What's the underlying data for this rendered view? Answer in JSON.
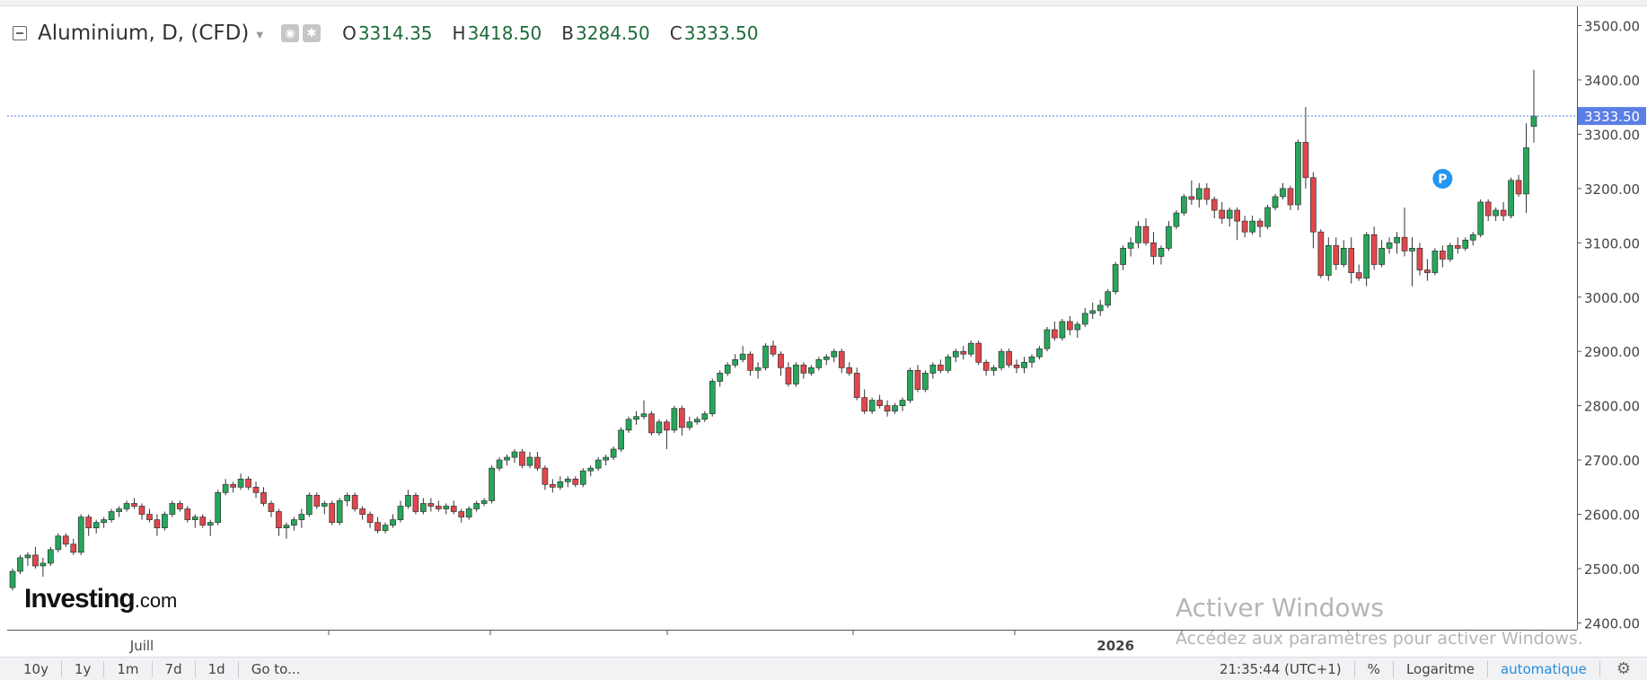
{
  "header": {
    "symbol": "Aluminium, D, (CFD)",
    "open_label": "O",
    "open_value": "3314.35",
    "high_label": "H",
    "high_value": "3418.50",
    "low_label": "B",
    "low_value": "3284.50",
    "close_label": "C",
    "close_value": "3333.50",
    "ohlc_color": "#1e6b3a"
  },
  "price_tag": "3333.50",
  "logo": {
    "bold": "Investing",
    "suffix": ".com"
  },
  "watermark": {
    "line1": "Activer Windows",
    "line2": "Accédez aux paramètres pour activer Windows."
  },
  "bottom_bar": {
    "ranges": [
      "10y",
      "1y",
      "1m",
      "7d",
      "1d"
    ],
    "goto": "Go to...",
    "time": "21:35:44 (UTC+1)",
    "percent": "%",
    "log": "Logaritme",
    "auto": "automatique"
  },
  "colors": {
    "up": "#26a65b",
    "down": "#e0474c",
    "price_line": "#5b7ee5",
    "marker": "#2196f3"
  },
  "chart_data": {
    "type": "candlestick",
    "y_ticks": [
      2400,
      2500,
      2600,
      2700,
      2800,
      2900,
      3000,
      3100,
      3200,
      3300,
      3400,
      3500
    ],
    "y_tick_labels": [
      "2400.00",
      "2500.00",
      "2600.00",
      "2700.00",
      "2800.00",
      "2900.00",
      "3000.00",
      "3100.00",
      "3200.00",
      "3300.00",
      "3400.00",
      "3500.00"
    ],
    "ylim": [
      2380,
      3530
    ],
    "x_labels": [
      {
        "label": "Juill",
        "index": 17
      },
      {
        "label": "2026",
        "index": 145
      }
    ],
    "current_price": 3333.5,
    "candles": [
      [
        2465,
        2500,
        2460,
        2495
      ],
      [
        2495,
        2525,
        2490,
        2520
      ],
      [
        2520,
        2530,
        2505,
        2525
      ],
      [
        2525,
        2540,
        2500,
        2505
      ],
      [
        2505,
        2520,
        2485,
        2510
      ],
      [
        2510,
        2540,
        2505,
        2535
      ],
      [
        2535,
        2565,
        2530,
        2560
      ],
      [
        2560,
        2565,
        2540,
        2545
      ],
      [
        2545,
        2555,
        2525,
        2530
      ],
      [
        2530,
        2600,
        2525,
        2595
      ],
      [
        2595,
        2600,
        2560,
        2575
      ],
      [
        2575,
        2590,
        2565,
        2585
      ],
      [
        2585,
        2595,
        2575,
        2590
      ],
      [
        2590,
        2610,
        2585,
        2605
      ],
      [
        2605,
        2615,
        2595,
        2610
      ],
      [
        2610,
        2625,
        2605,
        2620
      ],
      [
        2620,
        2630,
        2610,
        2615
      ],
      [
        2615,
        2620,
        2590,
        2600
      ],
      [
        2600,
        2610,
        2585,
        2590
      ],
      [
        2590,
        2600,
        2560,
        2575
      ],
      [
        2575,
        2605,
        2570,
        2600
      ],
      [
        2600,
        2625,
        2595,
        2620
      ],
      [
        2620,
        2625,
        2605,
        2610
      ],
      [
        2610,
        2615,
        2585,
        2590
      ],
      [
        2590,
        2600,
        2575,
        2595
      ],
      [
        2595,
        2600,
        2575,
        2580
      ],
      [
        2580,
        2590,
        2560,
        2585
      ],
      [
        2585,
        2645,
        2580,
        2640
      ],
      [
        2640,
        2665,
        2635,
        2655
      ],
      [
        2655,
        2660,
        2640,
        2650
      ],
      [
        2650,
        2675,
        2645,
        2665
      ],
      [
        2665,
        2670,
        2645,
        2650
      ],
      [
        2650,
        2660,
        2630,
        2640
      ],
      [
        2640,
        2650,
        2615,
        2620
      ],
      [
        2620,
        2625,
        2595,
        2605
      ],
      [
        2605,
        2610,
        2560,
        2575
      ],
      [
        2575,
        2585,
        2555,
        2580
      ],
      [
        2580,
        2595,
        2570,
        2590
      ],
      [
        2590,
        2610,
        2575,
        2600
      ],
      [
        2600,
        2640,
        2595,
        2635
      ],
      [
        2635,
        2640,
        2610,
        2615
      ],
      [
        2615,
        2625,
        2600,
        2620
      ],
      [
        2620,
        2625,
        2580,
        2585
      ],
      [
        2585,
        2630,
        2580,
        2625
      ],
      [
        2625,
        2640,
        2615,
        2635
      ],
      [
        2635,
        2640,
        2605,
        2610
      ],
      [
        2610,
        2615,
        2590,
        2600
      ],
      [
        2600,
        2605,
        2575,
        2585
      ],
      [
        2585,
        2595,
        2565,
        2570
      ],
      [
        2570,
        2585,
        2565,
        2580
      ],
      [
        2580,
        2600,
        2575,
        2590
      ],
      [
        2590,
        2625,
        2585,
        2615
      ],
      [
        2615,
        2645,
        2610,
        2635
      ],
      [
        2635,
        2640,
        2600,
        2605
      ],
      [
        2605,
        2630,
        2600,
        2620
      ],
      [
        2620,
        2630,
        2605,
        2615
      ],
      [
        2615,
        2625,
        2605,
        2610
      ],
      [
        2610,
        2620,
        2600,
        2615
      ],
      [
        2615,
        2625,
        2600,
        2605
      ],
      [
        2605,
        2610,
        2585,
        2595
      ],
      [
        2595,
        2615,
        2590,
        2610
      ],
      [
        2610,
        2625,
        2605,
        2620
      ],
      [
        2620,
        2630,
        2615,
        2625
      ],
      [
        2625,
        2690,
        2620,
        2685
      ],
      [
        2685,
        2705,
        2680,
        2700
      ],
      [
        2700,
        2710,
        2690,
        2705
      ],
      [
        2705,
        2720,
        2695,
        2715
      ],
      [
        2715,
        2720,
        2685,
        2690
      ],
      [
        2690,
        2715,
        2685,
        2705
      ],
      [
        2705,
        2715,
        2680,
        2685
      ],
      [
        2685,
        2690,
        2645,
        2655
      ],
      [
        2655,
        2665,
        2640,
        2650
      ],
      [
        2650,
        2670,
        2645,
        2660
      ],
      [
        2660,
        2670,
        2650,
        2665
      ],
      [
        2665,
        2670,
        2650,
        2655
      ],
      [
        2655,
        2685,
        2650,
        2680
      ],
      [
        2680,
        2690,
        2670,
        2685
      ],
      [
        2685,
        2705,
        2680,
        2700
      ],
      [
        2700,
        2710,
        2690,
        2705
      ],
      [
        2705,
        2725,
        2700,
        2720
      ],
      [
        2720,
        2760,
        2715,
        2755
      ],
      [
        2755,
        2780,
        2750,
        2775
      ],
      [
        2775,
        2790,
        2765,
        2780
      ],
      [
        2780,
        2810,
        2775,
        2785
      ],
      [
        2785,
        2790,
        2745,
        2750
      ],
      [
        2750,
        2775,
        2745,
        2770
      ],
      [
        2770,
        2775,
        2720,
        2755
      ],
      [
        2755,
        2800,
        2750,
        2795
      ],
      [
        2795,
        2800,
        2745,
        2760
      ],
      [
        2760,
        2780,
        2755,
        2770
      ],
      [
        2770,
        2780,
        2765,
        2775
      ],
      [
        2775,
        2790,
        2770,
        2785
      ],
      [
        2785,
        2850,
        2780,
        2845
      ],
      [
        2845,
        2865,
        2835,
        2860
      ],
      [
        2860,
        2880,
        2855,
        2875
      ],
      [
        2875,
        2895,
        2870,
        2885
      ],
      [
        2885,
        2910,
        2880,
        2895
      ],
      [
        2895,
        2900,
        2855,
        2865
      ],
      [
        2865,
        2880,
        2850,
        2870
      ],
      [
        2870,
        2915,
        2865,
        2910
      ],
      [
        2910,
        2920,
        2890,
        2895
      ],
      [
        2895,
        2900,
        2855,
        2870
      ],
      [
        2870,
        2880,
        2835,
        2840
      ],
      [
        2840,
        2880,
        2835,
        2875
      ],
      [
        2875,
        2880,
        2850,
        2860
      ],
      [
        2860,
        2875,
        2855,
        2870
      ],
      [
        2870,
        2890,
        2865,
        2885
      ],
      [
        2885,
        2895,
        2875,
        2890
      ],
      [
        2890,
        2905,
        2880,
        2900
      ],
      [
        2900,
        2905,
        2860,
        2870
      ],
      [
        2870,
        2880,
        2855,
        2860
      ],
      [
        2860,
        2870,
        2810,
        2815
      ],
      [
        2815,
        2830,
        2785,
        2790
      ],
      [
        2790,
        2815,
        2785,
        2810
      ],
      [
        2810,
        2820,
        2795,
        2800
      ],
      [
        2800,
        2810,
        2780,
        2790
      ],
      [
        2790,
        2805,
        2785,
        2800
      ],
      [
        2800,
        2815,
        2790,
        2810
      ],
      [
        2810,
        2870,
        2805,
        2865
      ],
      [
        2865,
        2875,
        2825,
        2830
      ],
      [
        2830,
        2865,
        2825,
        2860
      ],
      [
        2860,
        2880,
        2850,
        2875
      ],
      [
        2875,
        2885,
        2860,
        2865
      ],
      [
        2865,
        2895,
        2860,
        2890
      ],
      [
        2890,
        2905,
        2880,
        2900
      ],
      [
        2900,
        2910,
        2885,
        2895
      ],
      [
        2895,
        2920,
        2890,
        2915
      ],
      [
        2915,
        2920,
        2875,
        2880
      ],
      [
        2880,
        2885,
        2855,
        2865
      ],
      [
        2865,
        2875,
        2855,
        2870
      ],
      [
        2870,
        2905,
        2865,
        2900
      ],
      [
        2900,
        2905,
        2870,
        2875
      ],
      [
        2875,
        2885,
        2860,
        2870
      ],
      [
        2870,
        2890,
        2860,
        2880
      ],
      [
        2880,
        2895,
        2870,
        2890
      ],
      [
        2890,
        2910,
        2885,
        2905
      ],
      [
        2905,
        2945,
        2900,
        2940
      ],
      [
        2940,
        2955,
        2920,
        2925
      ],
      [
        2925,
        2960,
        2920,
        2955
      ],
      [
        2955,
        2965,
        2930,
        2940
      ],
      [
        2940,
        2955,
        2925,
        2950
      ],
      [
        2950,
        2980,
        2945,
        2970
      ],
      [
        2970,
        2990,
        2960,
        2975
      ],
      [
        2975,
        2995,
        2965,
        2985
      ],
      [
        2985,
        3015,
        2980,
        3010
      ],
      [
        3010,
        3065,
        3005,
        3060
      ],
      [
        3060,
        3095,
        3050,
        3090
      ],
      [
        3090,
        3110,
        3075,
        3100
      ],
      [
        3100,
        3140,
        3090,
        3130
      ],
      [
        3130,
        3145,
        3095,
        3100
      ],
      [
        3100,
        3120,
        3060,
        3075
      ],
      [
        3075,
        3095,
        3060,
        3090
      ],
      [
        3090,
        3140,
        3085,
        3130
      ],
      [
        3130,
        3160,
        3125,
        3155
      ],
      [
        3155,
        3190,
        3150,
        3185
      ],
      [
        3185,
        3215,
        3170,
        3180
      ],
      [
        3180,
        3210,
        3165,
        3200
      ],
      [
        3200,
        3210,
        3170,
        3180
      ],
      [
        3180,
        3185,
        3145,
        3160
      ],
      [
        3160,
        3175,
        3135,
        3145
      ],
      [
        3145,
        3165,
        3130,
        3160
      ],
      [
        3160,
        3165,
        3105,
        3140
      ],
      [
        3140,
        3150,
        3110,
        3120
      ],
      [
        3120,
        3150,
        3115,
        3140
      ],
      [
        3140,
        3145,
        3110,
        3130
      ],
      [
        3130,
        3170,
        3125,
        3165
      ],
      [
        3165,
        3190,
        3160,
        3185
      ],
      [
        3185,
        3210,
        3180,
        3200
      ],
      [
        3200,
        3205,
        3160,
        3170
      ],
      [
        3170,
        3290,
        3160,
        3285
      ],
      [
        3285,
        3350,
        3200,
        3220
      ],
      [
        3220,
        3230,
        3090,
        3120
      ],
      [
        3120,
        3125,
        3035,
        3040
      ],
      [
        3040,
        3110,
        3030,
        3095
      ],
      [
        3095,
        3110,
        3050,
        3060
      ],
      [
        3060,
        3105,
        3055,
        3090
      ],
      [
        3090,
        3110,
        3025,
        3045
      ],
      [
        3045,
        3060,
        3030,
        3035
      ],
      [
        3035,
        3120,
        3020,
        3115
      ],
      [
        3115,
        3130,
        3050,
        3060
      ],
      [
        3060,
        3105,
        3055,
        3090
      ],
      [
        3090,
        3110,
        3080,
        3100
      ],
      [
        3100,
        3120,
        3080,
        3110
      ],
      [
        3110,
        3165,
        3075,
        3085
      ],
      [
        3085,
        3110,
        3020,
        3090
      ],
      [
        3090,
        3100,
        3040,
        3050
      ],
      [
        3050,
        3070,
        3030,
        3045
      ],
      [
        3045,
        3090,
        3040,
        3085
      ],
      [
        3085,
        3095,
        3055,
        3070
      ],
      [
        3070,
        3100,
        3065,
        3095
      ],
      [
        3095,
        3110,
        3080,
        3090
      ],
      [
        3090,
        3110,
        3085,
        3105
      ],
      [
        3105,
        3120,
        3095,
        3115
      ],
      [
        3115,
        3180,
        3110,
        3175
      ],
      [
        3175,
        3180,
        3140,
        3150
      ],
      [
        3150,
        3165,
        3140,
        3160
      ],
      [
        3160,
        3175,
        3140,
        3150
      ],
      [
        3150,
        3220,
        3145,
        3215
      ],
      [
        3215,
        3225,
        3185,
        3190
      ],
      [
        3190,
        3320,
        3155,
        3275
      ],
      [
        3314.35,
        3418.5,
        3284.5,
        3333.5
      ]
    ],
    "marker": {
      "label": "P",
      "index": 188,
      "price": 3218
    }
  }
}
